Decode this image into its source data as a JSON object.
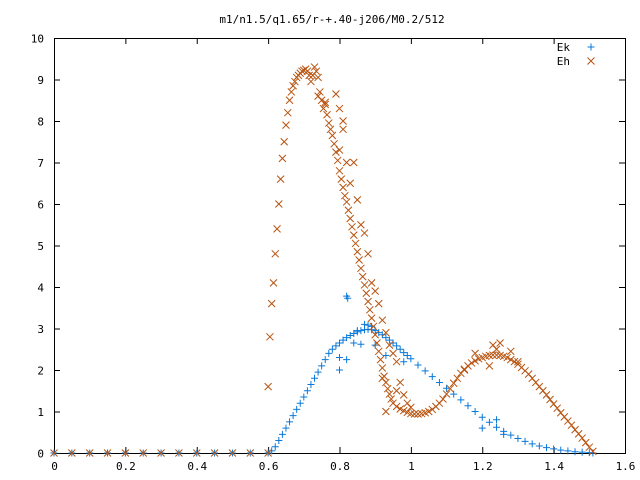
{
  "chart_data": {
    "type": "scatter",
    "title": "m1/n1.5/q1.65/r-+.40-j206/M0.2/512",
    "xlabel": "",
    "ylabel": "",
    "xlim": [
      0,
      1.6
    ],
    "ylim": [
      0,
      10
    ],
    "x_ticks": [
      "0",
      "0.2",
      "0.4",
      "0.6",
      "0.8",
      "1",
      "1.2",
      "1.4",
      "1.6"
    ],
    "y_ticks": [
      "0",
      "1",
      "2",
      "3",
      "4",
      "5",
      "6",
      "7",
      "8",
      "9",
      "10"
    ],
    "grid": false,
    "legend_position": "top-right",
    "series": [
      {
        "name": "Ek",
        "marker": "plus",
        "color": "#0a79d9",
        "points": [
          [
            0.0,
            0
          ],
          [
            0.05,
            0
          ],
          [
            0.1,
            0
          ],
          [
            0.15,
            0
          ],
          [
            0.2,
            0
          ],
          [
            0.25,
            0
          ],
          [
            0.3,
            0
          ],
          [
            0.35,
            0
          ],
          [
            0.4,
            0
          ],
          [
            0.45,
            0
          ],
          [
            0.5,
            0
          ],
          [
            0.55,
            0
          ],
          [
            0.6,
            0
          ],
          [
            0.61,
            0.05
          ],
          [
            0.62,
            0.15
          ],
          [
            0.63,
            0.3
          ],
          [
            0.64,
            0.45
          ],
          [
            0.65,
            0.6
          ],
          [
            0.66,
            0.75
          ],
          [
            0.67,
            0.9
          ],
          [
            0.68,
            1.05
          ],
          [
            0.69,
            1.2
          ],
          [
            0.7,
            1.35
          ],
          [
            0.71,
            1.5
          ],
          [
            0.72,
            1.65
          ],
          [
            0.73,
            1.8
          ],
          [
            0.74,
            1.95
          ],
          [
            0.75,
            2.1
          ],
          [
            0.76,
            2.25
          ],
          [
            0.77,
            2.4
          ],
          [
            0.78,
            2.5
          ],
          [
            0.79,
            2.58
          ],
          [
            0.8,
            2.65
          ],
          [
            0.81,
            2.72
          ],
          [
            0.82,
            2.78
          ],
          [
            0.83,
            2.83
          ],
          [
            0.84,
            2.88
          ],
          [
            0.85,
            2.92
          ],
          [
            0.86,
            2.95
          ],
          [
            0.87,
            2.97
          ],
          [
            0.88,
            2.98
          ],
          [
            0.89,
            2.97
          ],
          [
            0.9,
            2.95
          ],
          [
            0.91,
            2.9
          ],
          [
            0.92,
            2.85
          ],
          [
            0.93,
            2.78
          ],
          [
            0.94,
            2.72
          ],
          [
            0.95,
            2.65
          ],
          [
            0.96,
            2.58
          ],
          [
            0.97,
            2.5
          ],
          [
            0.98,
            2.42
          ],
          [
            0.99,
            2.35
          ],
          [
            1.0,
            2.27
          ],
          [
            1.02,
            2.12
          ],
          [
            1.04,
            1.98
          ],
          [
            1.06,
            1.84
          ],
          [
            1.08,
            1.7
          ],
          [
            1.1,
            1.56
          ],
          [
            1.12,
            1.42
          ],
          [
            1.14,
            1.28
          ],
          [
            1.16,
            1.14
          ],
          [
            1.18,
            1.0
          ],
          [
            1.2,
            0.86
          ],
          [
            1.22,
            0.74
          ],
          [
            1.24,
            0.62
          ],
          [
            1.26,
            0.52
          ],
          [
            1.28,
            0.43
          ],
          [
            1.3,
            0.35
          ],
          [
            1.32,
            0.28
          ],
          [
            1.34,
            0.22
          ],
          [
            1.36,
            0.17
          ],
          [
            1.38,
            0.13
          ],
          [
            1.4,
            0.1
          ],
          [
            1.42,
            0.07
          ],
          [
            1.44,
            0.05
          ],
          [
            1.46,
            0.03
          ],
          [
            1.48,
            0.02
          ],
          [
            1.5,
            0.01
          ],
          [
            1.51,
            0
          ],
          [
            0.82,
            3.78
          ],
          [
            0.823,
            3.73
          ],
          [
            0.8,
            2.3
          ],
          [
            0.82,
            2.25
          ],
          [
            0.8,
            2.0
          ],
          [
            0.84,
            2.65
          ],
          [
            0.86,
            2.62
          ],
          [
            0.85,
            2.95
          ],
          [
            0.87,
            3.1
          ],
          [
            0.88,
            3.08
          ],
          [
            0.89,
            3.05
          ],
          [
            0.9,
            2.6
          ],
          [
            0.93,
            2.35
          ],
          [
            0.98,
            2.2
          ],
          [
            1.2,
            0.6
          ],
          [
            1.24,
            0.8
          ],
          [
            1.26,
            0.45
          ]
        ]
      },
      {
        "name": "Eh",
        "marker": "cross",
        "color": "#b8530f",
        "points": [
          [
            0.0,
            0
          ],
          [
            0.05,
            0
          ],
          [
            0.1,
            0
          ],
          [
            0.15,
            0
          ],
          [
            0.2,
            0
          ],
          [
            0.25,
            0
          ],
          [
            0.3,
            0
          ],
          [
            0.35,
            0
          ],
          [
            0.4,
            0
          ],
          [
            0.45,
            0
          ],
          [
            0.5,
            0
          ],
          [
            0.55,
            0
          ],
          [
            0.6,
            0
          ],
          [
            0.6,
            1.6
          ],
          [
            0.605,
            2.8
          ],
          [
            0.61,
            3.6
          ],
          [
            0.615,
            4.1
          ],
          [
            0.62,
            4.8
          ],
          [
            0.625,
            5.4
          ],
          [
            0.63,
            6.0
          ],
          [
            0.635,
            6.6
          ],
          [
            0.64,
            7.1
          ],
          [
            0.645,
            7.5
          ],
          [
            0.65,
            7.9
          ],
          [
            0.655,
            8.2
          ],
          [
            0.66,
            8.5
          ],
          [
            0.665,
            8.7
          ],
          [
            0.67,
            8.85
          ],
          [
            0.675,
            8.95
          ],
          [
            0.68,
            9.05
          ],
          [
            0.685,
            9.1
          ],
          [
            0.69,
            9.15
          ],
          [
            0.695,
            9.2
          ],
          [
            0.7,
            9.22
          ],
          [
            0.705,
            9.25
          ],
          [
            0.71,
            9.2
          ],
          [
            0.715,
            9.1
          ],
          [
            0.72,
            8.95
          ],
          [
            0.725,
            9.1
          ],
          [
            0.73,
            9.3
          ],
          [
            0.735,
            9.2
          ],
          [
            0.74,
            9.05
          ],
          [
            0.745,
            8.7
          ],
          [
            0.75,
            8.5
          ],
          [
            0.755,
            8.3
          ],
          [
            0.76,
            8.4
          ],
          [
            0.765,
            8.15
          ],
          [
            0.77,
            7.95
          ],
          [
            0.775,
            7.8
          ],
          [
            0.78,
            7.65
          ],
          [
            0.785,
            7.45
          ],
          [
            0.79,
            7.25
          ],
          [
            0.795,
            7.05
          ],
          [
            0.8,
            6.8
          ],
          [
            0.805,
            6.6
          ],
          [
            0.81,
            6.4
          ],
          [
            0.815,
            6.2
          ],
          [
            0.82,
            6.05
          ],
          [
            0.825,
            5.85
          ],
          [
            0.83,
            5.65
          ],
          [
            0.835,
            5.45
          ],
          [
            0.84,
            5.25
          ],
          [
            0.845,
            5.05
          ],
          [
            0.85,
            4.85
          ],
          [
            0.855,
            4.65
          ],
          [
            0.86,
            4.45
          ],
          [
            0.865,
            4.25
          ],
          [
            0.87,
            4.05
          ],
          [
            0.875,
            3.85
          ],
          [
            0.88,
            3.65
          ],
          [
            0.885,
            3.45
          ],
          [
            0.89,
            3.25
          ],
          [
            0.895,
            3.05
          ],
          [
            0.9,
            2.85
          ],
          [
            0.905,
            2.65
          ],
          [
            0.91,
            2.45
          ],
          [
            0.915,
            2.25
          ],
          [
            0.92,
            2.05
          ],
          [
            0.925,
            1.85
          ],
          [
            0.93,
            1.7
          ],
          [
            0.935,
            1.55
          ],
          [
            0.94,
            1.42
          ],
          [
            0.945,
            1.3
          ],
          [
            0.95,
            1.2
          ],
          [
            0.96,
            1.12
          ],
          [
            0.97,
            1.06
          ],
          [
            0.98,
            1.02
          ],
          [
            0.99,
            0.98
          ],
          [
            1.0,
            0.95
          ],
          [
            1.01,
            0.94
          ],
          [
            1.02,
            0.94
          ],
          [
            1.03,
            0.95
          ],
          [
            1.04,
            0.97
          ],
          [
            1.05,
            1.0
          ],
          [
            1.06,
            1.05
          ],
          [
            1.07,
            1.12
          ],
          [
            1.08,
            1.2
          ],
          [
            1.09,
            1.3
          ],
          [
            1.1,
            1.42
          ],
          [
            1.11,
            1.55
          ],
          [
            1.12,
            1.68
          ],
          [
            1.13,
            1.8
          ],
          [
            1.14,
            1.92
          ],
          [
            1.15,
            2.02
          ],
          [
            1.16,
            2.1
          ],
          [
            1.17,
            2.17
          ],
          [
            1.18,
            2.22
          ],
          [
            1.19,
            2.27
          ],
          [
            1.2,
            2.3
          ],
          [
            1.21,
            2.33
          ],
          [
            1.22,
            2.35
          ],
          [
            1.23,
            2.36
          ],
          [
            1.24,
            2.36
          ],
          [
            1.25,
            2.35
          ],
          [
            1.26,
            2.33
          ],
          [
            1.27,
            2.3
          ],
          [
            1.28,
            2.25
          ],
          [
            1.29,
            2.2
          ],
          [
            1.3,
            2.14
          ],
          [
            1.31,
            2.06
          ],
          [
            1.32,
            1.98
          ],
          [
            1.33,
            1.9
          ],
          [
            1.34,
            1.8
          ],
          [
            1.35,
            1.7
          ],
          [
            1.36,
            1.6
          ],
          [
            1.37,
            1.5
          ],
          [
            1.38,
            1.4
          ],
          [
            1.39,
            1.29
          ],
          [
            1.4,
            1.18
          ],
          [
            1.41,
            1.08
          ],
          [
            1.42,
            0.97
          ],
          [
            1.43,
            0.87
          ],
          [
            1.44,
            0.77
          ],
          [
            1.45,
            0.67
          ],
          [
            1.46,
            0.56
          ],
          [
            1.47,
            0.46
          ],
          [
            1.48,
            0.36
          ],
          [
            1.49,
            0.25
          ],
          [
            1.5,
            0.14
          ],
          [
            1.51,
            0.04
          ],
          [
            0.74,
            8.6
          ],
          [
            0.76,
            8.45
          ],
          [
            0.79,
            8.65
          ],
          [
            0.8,
            8.3
          ],
          [
            0.81,
            8.0
          ],
          [
            0.8,
            7.3
          ],
          [
            0.81,
            7.8
          ],
          [
            0.82,
            7.0
          ],
          [
            0.83,
            6.5
          ],
          [
            0.84,
            7.0
          ],
          [
            0.85,
            6.1
          ],
          [
            0.86,
            5.5
          ],
          [
            0.87,
            5.3
          ],
          [
            0.88,
            4.8
          ],
          [
            0.89,
            4.1
          ],
          [
            0.9,
            3.9
          ],
          [
            0.91,
            3.6
          ],
          [
            0.92,
            3.2
          ],
          [
            0.93,
            2.9
          ],
          [
            0.94,
            2.6
          ],
          [
            0.95,
            2.4
          ],
          [
            0.96,
            2.2
          ],
          [
            0.97,
            1.7
          ],
          [
            0.98,
            1.4
          ],
          [
            0.99,
            1.2
          ],
          [
            1.0,
            1.1
          ],
          [
            1.23,
            2.6
          ],
          [
            1.24,
            2.5
          ],
          [
            1.25,
            2.65
          ],
          [
            1.15,
            2.0
          ],
          [
            1.18,
            2.4
          ],
          [
            1.3,
            2.2
          ],
          [
            1.28,
            2.45
          ],
          [
            1.22,
            2.1
          ],
          [
            0.96,
            1.5
          ],
          [
            0.93,
            1.0
          ],
          [
            0.92,
            1.8
          ]
        ]
      }
    ]
  }
}
